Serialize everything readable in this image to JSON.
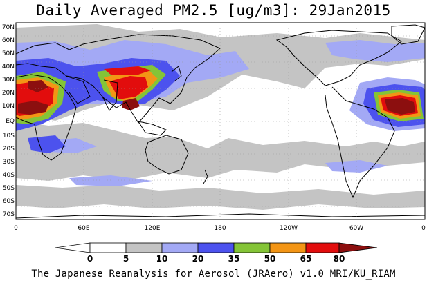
{
  "title": "Daily Averaged PM2.5 [ug/m3]: 29Jan2015",
  "footer": "The Japanese Reanalysis for Aerosol (JRAero) v1.0 MRI/KU_RIAM",
  "lat_labels": [
    "70N",
    "60N",
    "50N",
    "40N",
    "30N",
    "20N",
    "10N",
    "EQ",
    "10S",
    "20S",
    "30S",
    "40S",
    "50S",
    "60S",
    "70S"
  ],
  "lon_labels": [
    "0",
    "60E",
    "120E",
    "180",
    "120W",
    "60W",
    "0"
  ],
  "colorbar": {
    "levels": [
      "0",
      "5",
      "10",
      "20",
      "35",
      "50",
      "65",
      "80"
    ],
    "colors": [
      "#ffffff",
      "#c4c4c4",
      "#a3a9f5",
      "#4c52ee",
      "#84c437",
      "#f39515",
      "#e20d0d",
      "#8c0f0f"
    ]
  },
  "land_color": "#ffffff",
  "coast_color": "#000000"
}
